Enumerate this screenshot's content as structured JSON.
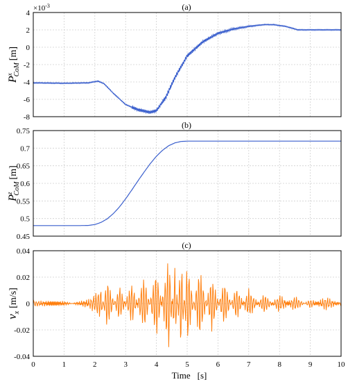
{
  "chart_data": [
    {
      "type": "line",
      "title": "(a)",
      "ylabel_main": "P",
      "ylabel_sup": "x",
      "ylabel_sub": "CoM",
      "ylabel_unit": "[m]",
      "exponent_label": "×10",
      "exponent_power": "-3",
      "xlim": [
        0,
        10
      ],
      "ylim": [
        -8,
        4
      ],
      "xticks": [
        "0",
        "1",
        "2",
        "3",
        "4",
        "5",
        "6",
        "7",
        "8",
        "9",
        "10"
      ],
      "yticks": [
        "4",
        "2",
        "0",
        "-2",
        "-4",
        "-6",
        "-8"
      ],
      "grid": true,
      "color": "#3a5fcd",
      "series": [
        {
          "x": [
            0,
            1,
            1.8,
            2.1,
            2.3,
            2.6,
            3.0,
            3.4,
            3.8,
            4.0,
            4.3,
            4.6,
            5.0,
            5.5,
            6.0,
            6.5,
            7.0,
            7.5,
            7.8,
            8.2,
            8.6,
            9.0,
            9.5,
            10
          ],
          "values": [
            -4.1,
            -4.15,
            -4.1,
            -3.9,
            -4.2,
            -5.3,
            -6.6,
            -7.2,
            -7.5,
            -7.3,
            -5.8,
            -3.5,
            -1.0,
            0.6,
            1.6,
            2.1,
            2.4,
            2.6,
            2.6,
            2.4,
            2.0,
            2.0,
            2.0,
            2.0
          ]
        }
      ]
    },
    {
      "type": "line",
      "title": "(b)",
      "ylabel_main": "P",
      "ylabel_sup": "z",
      "ylabel_sub": "CoM",
      "ylabel_unit": "[m]",
      "xlim": [
        0,
        10
      ],
      "ylim": [
        0.45,
        0.75
      ],
      "xticks": [
        "0",
        "1",
        "2",
        "3",
        "4",
        "5",
        "6",
        "7",
        "8",
        "9",
        "10"
      ],
      "yticks": [
        "0.75",
        "0.7",
        "0.65",
        "0.6",
        "0.55",
        "0.5",
        "0.45"
      ],
      "grid": true,
      "color": "#3a5fcd",
      "series": [
        {
          "x": [
            0,
            1.5,
            1.8,
            2.0,
            2.2,
            2.4,
            2.6,
            2.8,
            3.0,
            3.2,
            3.4,
            3.6,
            3.8,
            4.0,
            4.2,
            4.4,
            4.6,
            4.8,
            5.0,
            6,
            7,
            8,
            9,
            10
          ],
          "values": [
            0.48,
            0.48,
            0.4805,
            0.483,
            0.489,
            0.499,
            0.514,
            0.533,
            0.556,
            0.581,
            0.607,
            0.632,
            0.656,
            0.677,
            0.694,
            0.707,
            0.715,
            0.719,
            0.72,
            0.72,
            0.72,
            0.72,
            0.72,
            0.72
          ]
        }
      ]
    },
    {
      "type": "line",
      "title": "(c)",
      "ylabel_main": "v",
      "ylabel_sub": "x",
      "ylabel_unit": "[m/s]",
      "xlabel": "Time",
      "xlabel_unit": "[s]",
      "xlim": [
        0,
        10
      ],
      "ylim": [
        -0.04,
        0.04
      ],
      "xticks": [
        "0",
        "1",
        "2",
        "3",
        "4",
        "5",
        "6",
        "7",
        "8",
        "9",
        "10"
      ],
      "yticks": [
        "0.04",
        "0.02",
        "0",
        "-0.02",
        "-0.04"
      ],
      "grid": true,
      "color": "#ff7f0e",
      "series": [
        {
          "x": [
            0,
            1,
            1.8,
            2.2,
            2.4,
            2.8,
            3.2,
            3.6,
            4.0,
            4.4,
            4.6,
            4.8,
            5.0,
            5.4,
            5.8,
            6.2,
            6.6,
            7.0,
            7.5,
            8.0,
            8.5,
            9.0,
            9.5,
            10
          ],
          "values": [
            0.002,
            -0.001,
            0.002,
            0.01,
            -0.018,
            0.013,
            -0.015,
            0.02,
            -0.025,
            0.035,
            -0.027,
            0.034,
            -0.03,
            0.026,
            -0.02,
            0.016,
            -0.012,
            0.01,
            -0.007,
            0.006,
            -0.005,
            0.003,
            -0.004,
            0.001
          ]
        }
      ]
    }
  ]
}
